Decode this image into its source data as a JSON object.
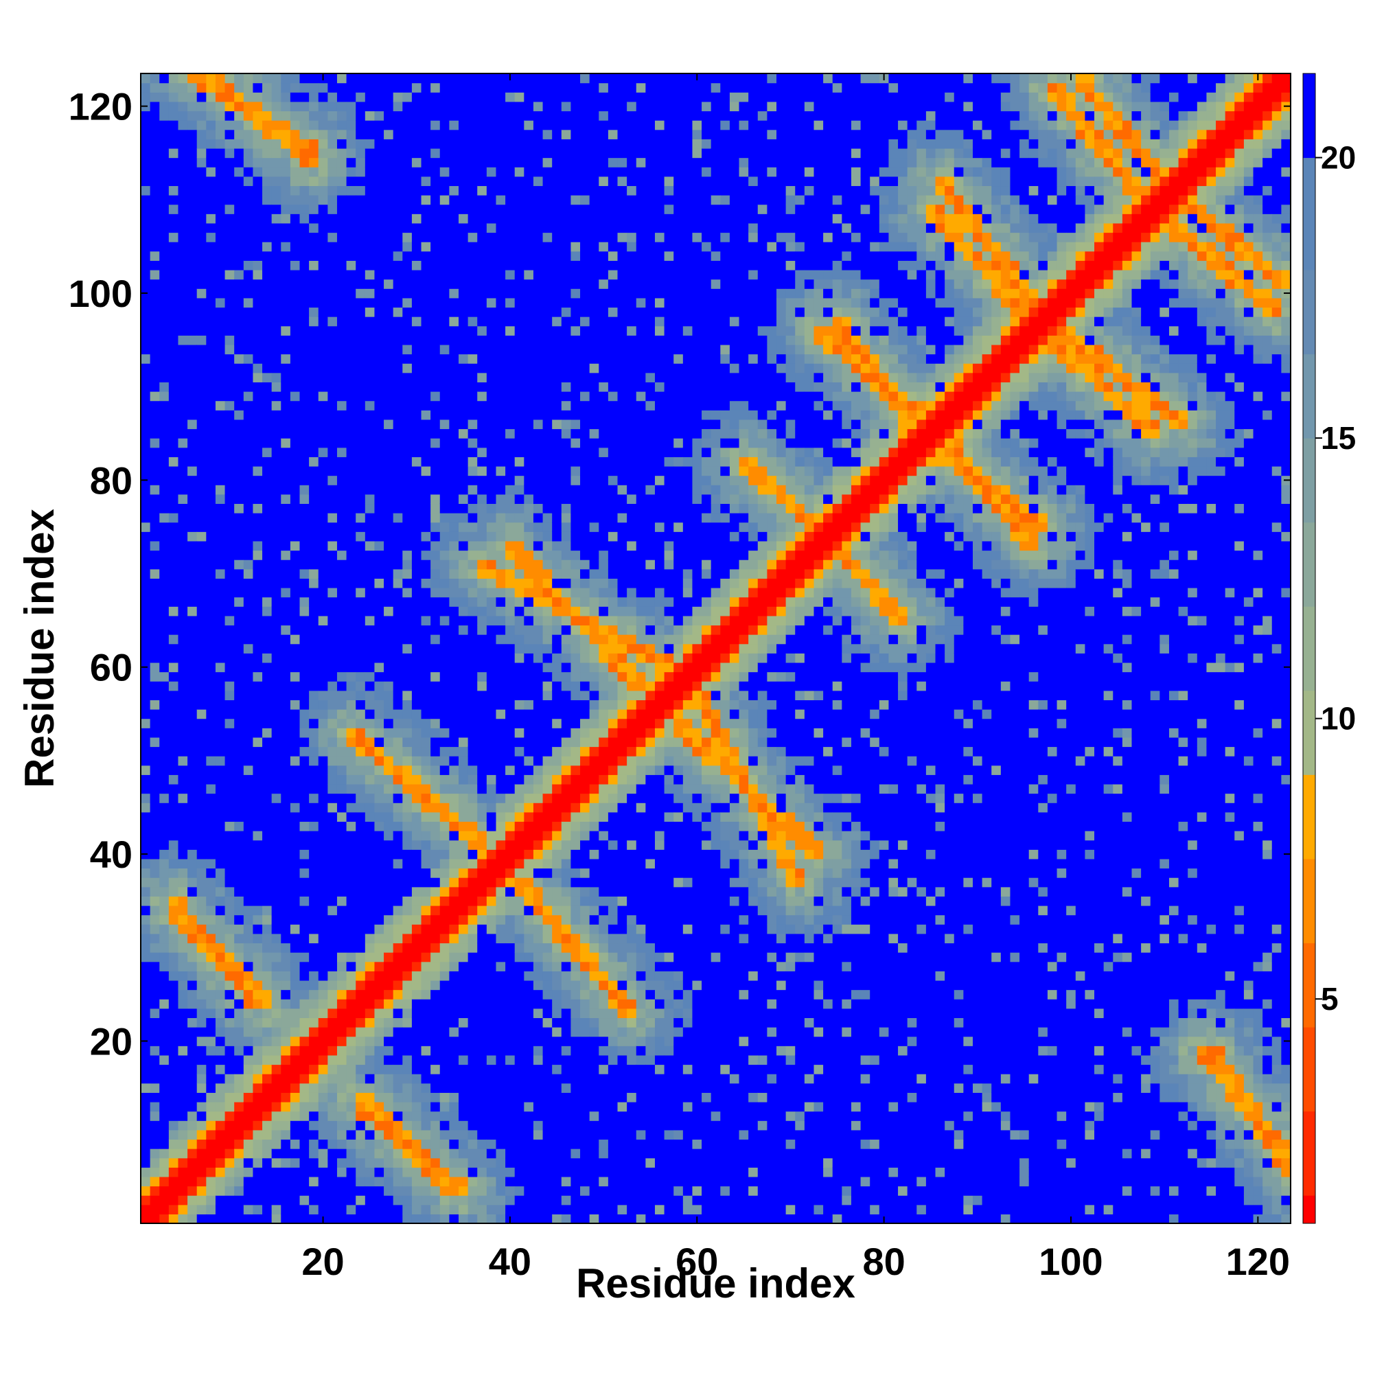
{
  "chart_data": {
    "type": "heatmap",
    "title": "",
    "xlabel": "Residue index",
    "ylabel": "Residue index",
    "n_residues": 123,
    "xlim": [
      1,
      123
    ],
    "ylim": [
      1,
      123
    ],
    "x_ticks": [
      20,
      40,
      60,
      80,
      100,
      120
    ],
    "y_ticks": [
      20,
      40,
      60,
      80,
      100,
      120
    ],
    "colorbar": {
      "ticks": [
        5,
        10,
        15,
        20
      ],
      "range": [
        1,
        21.5
      ],
      "levels": [
        {
          "max": 1.5,
          "color": "#ff0000"
        },
        {
          "max": 3.0,
          "color": "#ff2a00"
        },
        {
          "max": 4.5,
          "color": "#ff4c00"
        },
        {
          "max": 6.0,
          "color": "#ff6a00"
        },
        {
          "max": 7.5,
          "color": "#ff8c00"
        },
        {
          "max": 9.0,
          "color": "#ffaa00"
        },
        {
          "max": 10.5,
          "color": "#a3b887"
        },
        {
          "max": 12.0,
          "color": "#97b191"
        },
        {
          "max": 13.5,
          "color": "#8ba89a"
        },
        {
          "max": 15.0,
          "color": "#7e9fa3"
        },
        {
          "max": 16.5,
          "color": "#7297ad"
        },
        {
          "max": 18.0,
          "color": "#648ab3"
        },
        {
          "max": 20.0,
          "color": "#5b85b8"
        },
        {
          "max": 99,
          "color": "#0000ff"
        }
      ]
    },
    "value_description": "pairwise residue distance; symmetric matrix",
    "diagonal_band": {
      "width": 2
    },
    "contact_stripes": [
      {
        "type": "anti",
        "start": [
          4,
          35
        ],
        "end": [
          13,
          24
        ]
      },
      {
        "type": "anti",
        "start": [
          24,
          14
        ],
        "end": [
          34,
          4
        ]
      },
      {
        "type": "anti",
        "start": [
          23,
          53
        ],
        "end": [
          37,
          41
        ]
      },
      {
        "type": "anti",
        "start": [
          37,
          71
        ],
        "end": [
          57,
          60
        ]
      },
      {
        "type": "anti",
        "start": [
          58,
          54
        ],
        "end": [
          73,
          40
        ]
      },
      {
        "type": "anti",
        "start": [
          65,
          82
        ],
        "end": [
          76,
          72
        ]
      },
      {
        "type": "anti",
        "start": [
          73,
          96
        ],
        "end": [
          85,
          86
        ]
      },
      {
        "type": "anti",
        "start": [
          86,
          83
        ],
        "end": [
          97,
          75
        ]
      },
      {
        "type": "anti",
        "start": [
          98,
          95
        ],
        "end": [
          109,
          85
        ]
      },
      {
        "type": "anti",
        "start": [
          110,
          108
        ],
        "end": [
          122,
          98
        ]
      },
      {
        "type": "anti",
        "start": [
          86,
          112
        ],
        "end": [
          96,
          99
        ]
      },
      {
        "type": "anti",
        "start": [
          4,
          125
        ],
        "end": [
          19,
          115
        ]
      },
      {
        "type": "anti",
        "start": [
          101,
          123
        ],
        "end": [
          110,
          112
        ]
      },
      {
        "type": "anti",
        "start": [
          114,
          19
        ],
        "end": [
          123,
          8
        ]
      }
    ],
    "legend": "colorbar on the right",
    "grid": false
  }
}
